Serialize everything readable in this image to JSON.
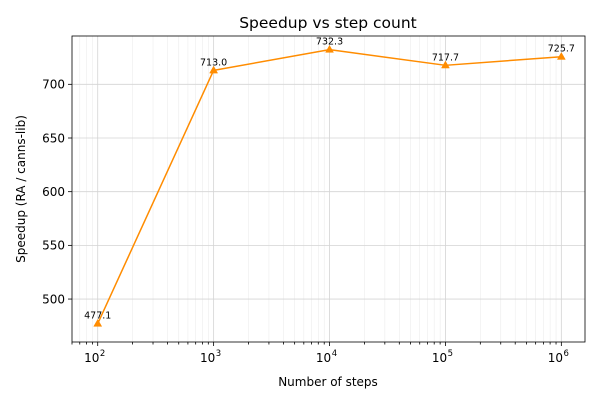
{
  "chart_data": {
    "type": "line",
    "title": "Speedup vs step count",
    "xlabel": "Number of steps",
    "ylabel": "Speedup (RA / canns-lib)",
    "x_scale": "log",
    "x": [
      100,
      1000,
      10000,
      100000,
      1000000
    ],
    "x_tick_labels": [
      {
        "base": "10",
        "exp": "2"
      },
      {
        "base": "10",
        "exp": "3"
      },
      {
        "base": "10",
        "exp": "4"
      },
      {
        "base": "10",
        "exp": "5"
      },
      {
        "base": "10",
        "exp": "6"
      }
    ],
    "yticks": [
      500,
      550,
      600,
      650,
      700
    ],
    "ylim": [
      460,
      745
    ],
    "xlim": [
      60,
      1600000
    ],
    "grid": true,
    "series": [
      {
        "values": [
          477.1,
          713.0,
          732.3,
          717.7,
          725.7
        ],
        "labels": [
          "477.1",
          "713.0",
          "732.3",
          "717.7",
          "725.7"
        ],
        "color": "#ff8c00",
        "marker": "triangle"
      }
    ]
  }
}
